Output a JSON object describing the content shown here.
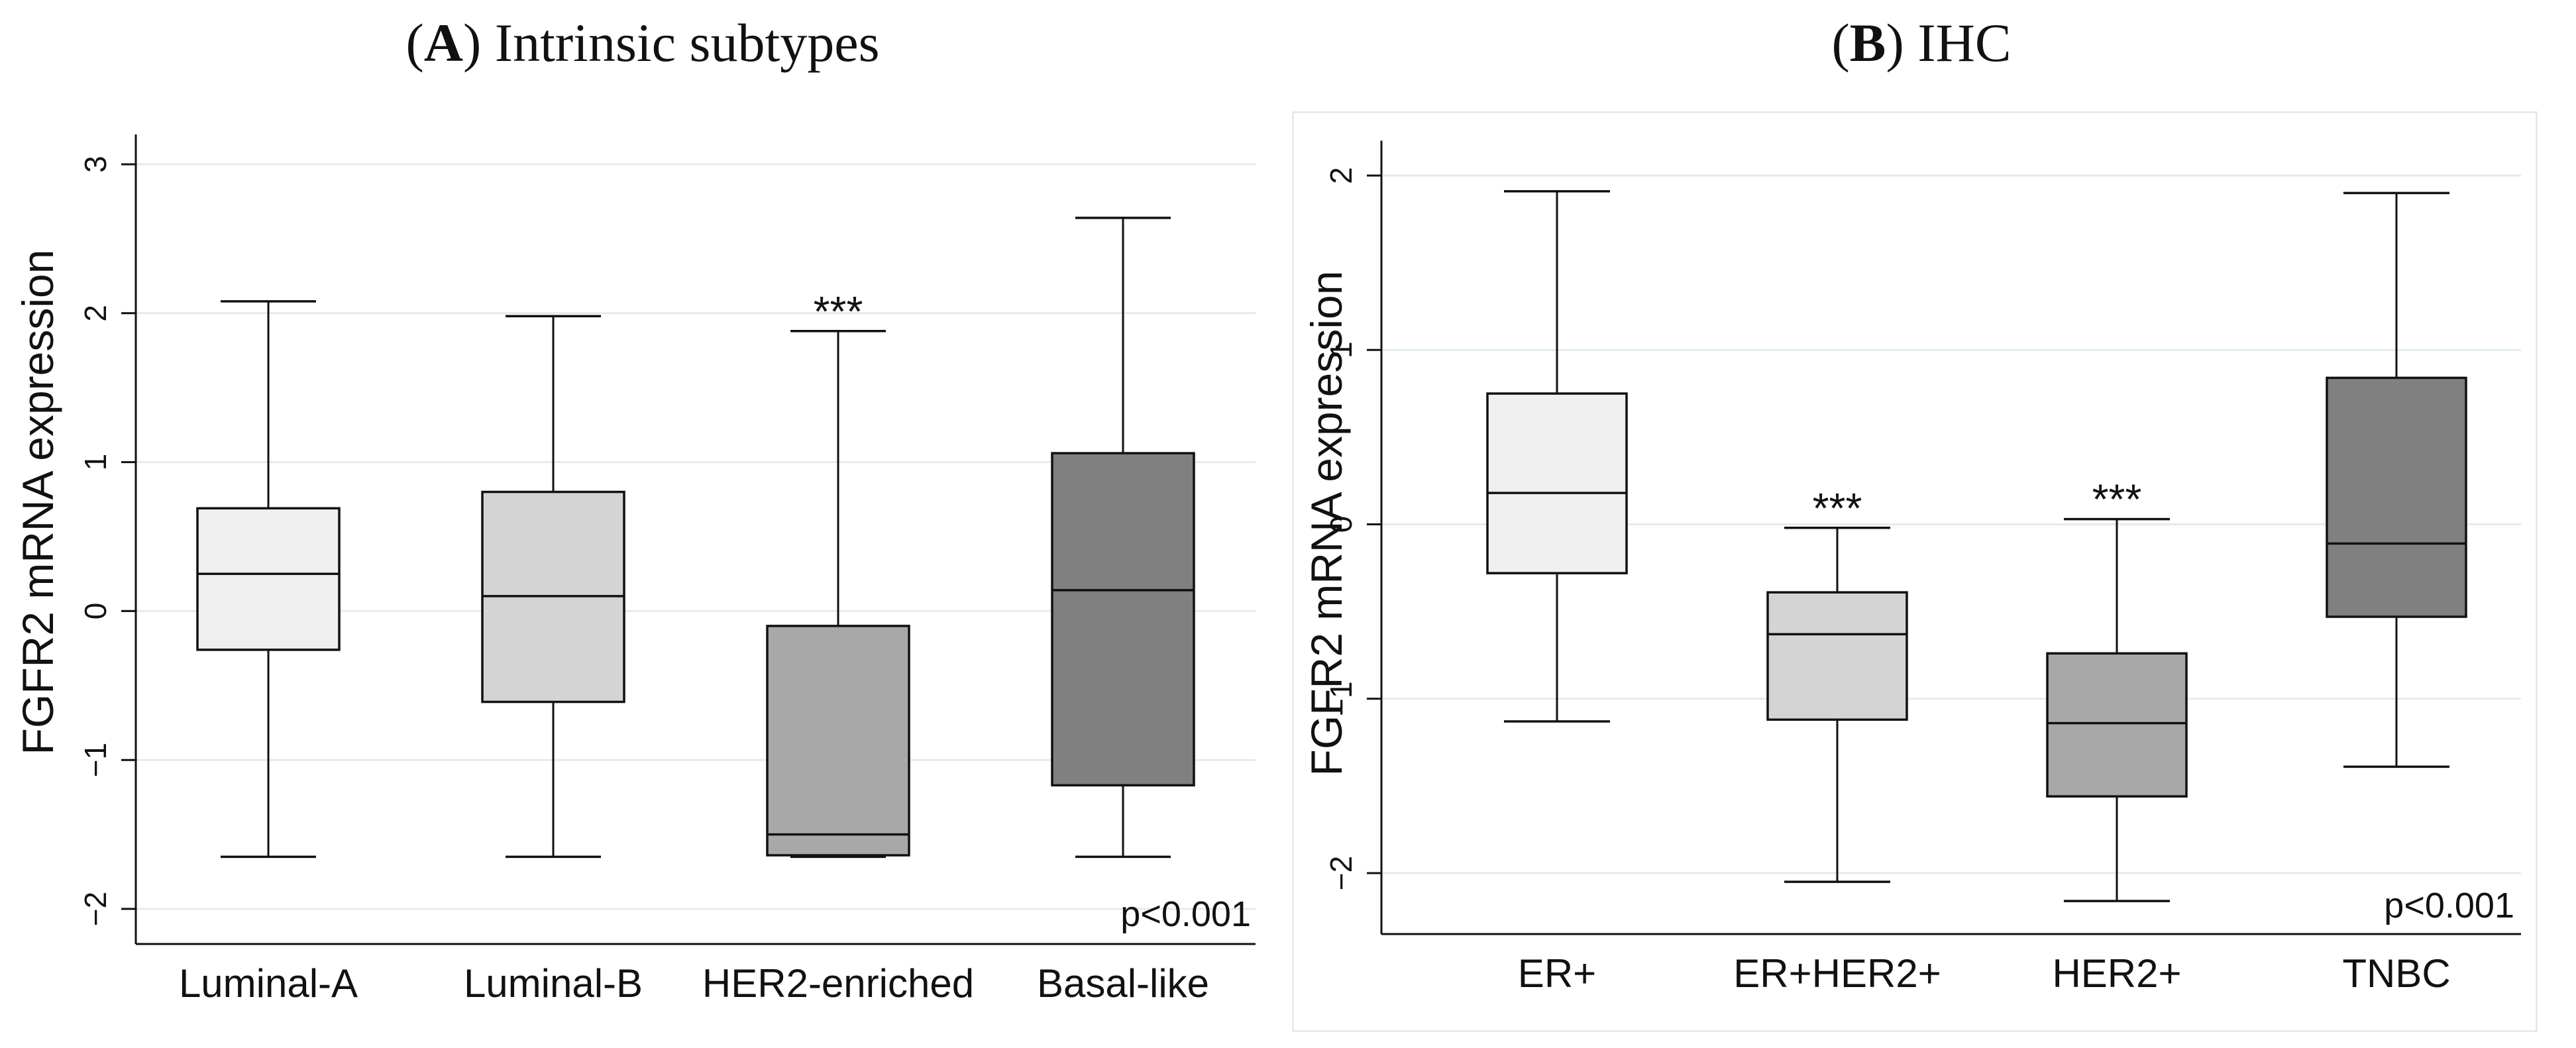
{
  "panels": {
    "a": {
      "letter": "A",
      "name": "Intrinsic subtypes"
    },
    "b": {
      "letter": "B",
      "name": "IHC"
    }
  },
  "chart_data": [
    {
      "type": "box",
      "title": "(A) Intrinsic subtypes",
      "ylabel": "FGFR2 mRNA expression",
      "xlabel": "",
      "ylim": [
        -2.2,
        3.2
      ],
      "yticks": [
        -2,
        -1,
        0,
        1,
        2,
        3
      ],
      "ytick_labels": [
        "−2",
        "−1",
        "0",
        "1",
        "2",
        "3"
      ],
      "grid": true,
      "annotation": "p<0.001",
      "categories": [
        "Luminal-A",
        "Luminal-B",
        "HER2-enriched",
        "Basal-like"
      ],
      "boxes": [
        {
          "label": "Luminal-A",
          "whisker_low": -1.65,
          "q1": -0.26,
          "median": 0.25,
          "q3": 0.69,
          "whisker_high": 2.08,
          "color": "#efefef",
          "significance": ""
        },
        {
          "label": "Luminal-B",
          "whisker_low": -1.65,
          "q1": -0.61,
          "median": 0.1,
          "q3": 0.8,
          "whisker_high": 1.98,
          "color": "#d4d4d4",
          "significance": ""
        },
        {
          "label": "HER2-enriched",
          "whisker_low": -1.65,
          "q1": -1.64,
          "median": -1.5,
          "q3": -0.1,
          "whisker_high": 1.88,
          "color": "#a8a8a8",
          "significance": "***"
        },
        {
          "label": "Basal-like",
          "whisker_low": -1.65,
          "q1": -1.17,
          "median": 0.14,
          "q3": 1.06,
          "whisker_high": 2.64,
          "color": "#808080",
          "significance": ""
        }
      ]
    },
    {
      "type": "box",
      "title": "(B) IHC",
      "ylabel": "FGFR2 mRNA expression",
      "xlabel": "",
      "ylim": [
        -2.35,
        2.2
      ],
      "yticks": [
        -2,
        -1,
        0,
        1,
        2
      ],
      "ytick_labels": [
        "−2",
        "−1",
        "0",
        "1",
        "2"
      ],
      "grid": true,
      "annotation": "p<0.001",
      "categories": [
        "ER+",
        "ER+HER2+",
        "HER2+",
        "TNBC"
      ],
      "boxes": [
        {
          "label": "ER+",
          "whisker_low": -1.13,
          "q1": -0.28,
          "median": 0.18,
          "q3": 0.75,
          "whisker_high": 1.91,
          "color": "#efefef",
          "significance": ""
        },
        {
          "label": "ER+HER2+",
          "whisker_low": -2.05,
          "q1": -1.12,
          "median": -0.63,
          "q3": -0.39,
          "whisker_high": -0.02,
          "color": "#d4d4d4",
          "significance": "***"
        },
        {
          "label": "HER2+",
          "whisker_low": -2.16,
          "q1": -1.56,
          "median": -1.14,
          "q3": -0.74,
          "whisker_high": 0.03,
          "color": "#a8a8a8",
          "significance": "***"
        },
        {
          "label": "TNBC",
          "whisker_low": -1.39,
          "q1": -0.53,
          "median": -0.11,
          "q3": 0.84,
          "whisker_high": 1.9,
          "color": "#808080",
          "significance": ""
        }
      ]
    }
  ]
}
